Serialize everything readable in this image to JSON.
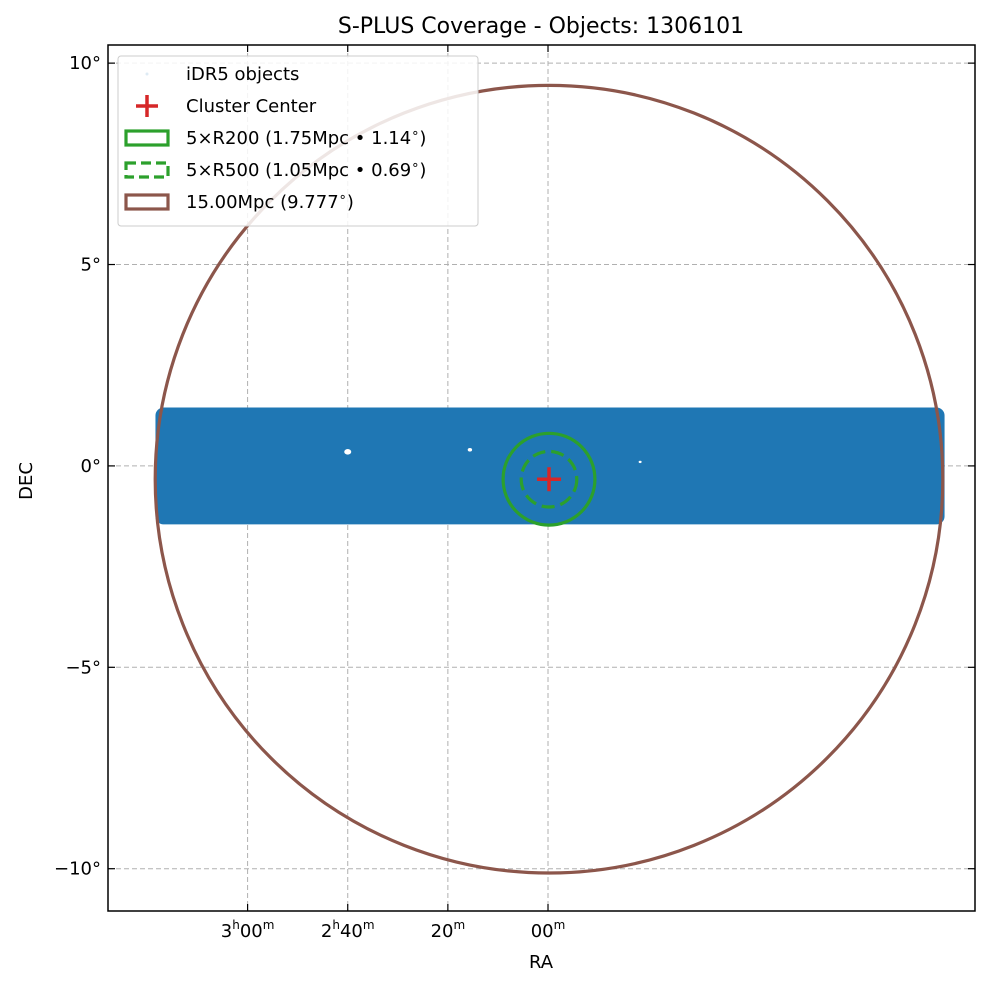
{
  "chart_data": {
    "type": "scatter",
    "title": "S-PLUS Coverage - Objects: 1306101",
    "xlabel": "RA",
    "ylabel": "DEC",
    "xlim_deg": [
      51.97,
      8.68
    ],
    "ylim_deg": [
      -11.05,
      10.45
    ],
    "grid": true,
    "legend_position": "top-left",
    "x_ticks": [
      {
        "value": 45.0,
        "h": "3",
        "m": "00",
        "show_h": true
      },
      {
        "value": 40.0,
        "h": "2",
        "m": "40",
        "show_h": true
      },
      {
        "value": 35.0,
        "h": "",
        "m": "20",
        "show_h": false
      },
      {
        "value": 30.0,
        "h": "",
        "m": "00",
        "show_h": false
      }
    ],
    "y_ticks": [
      {
        "value": 10,
        "label": "10°"
      },
      {
        "value": 5,
        "label": "5°"
      },
      {
        "value": 0,
        "label": "0°"
      },
      {
        "value": -5,
        "label": "−5°"
      },
      {
        "value": -10,
        "label": "−10°"
      }
    ],
    "coverage_stripe": {
      "name": "iDR5 objects",
      "ra_min": 10.2,
      "ra_max": 49.6,
      "dec_min": -1.45,
      "dec_max": 1.45,
      "color": "#1f77b4"
    },
    "cluster_center": {
      "ra": 29.95,
      "dec": -0.33,
      "color": "#d62728"
    },
    "circles": [
      {
        "name": "5×R200 (1.75Mpc • 1.14$^\\circ$)",
        "radius_deg": 1.14,
        "color": "#2ca02c",
        "style": "solid"
      },
      {
        "name": "5×R500 (1.05Mpc • 0.69$^\\circ$)",
        "radius_deg": 0.69,
        "color": "#2ca02c",
        "style": "dashed"
      },
      {
        "name": "15.00Mpc (9.777$^\\circ$)",
        "radius_deg": 9.777,
        "color": "#8c564b",
        "style": "solid"
      }
    ],
    "legend": [
      {
        "label": "iDR5 objects",
        "marker": "point",
        "color": "#1f77b4"
      },
      {
        "label": "Cluster Center",
        "marker": "plus",
        "color": "#d62728"
      },
      {
        "label": "5×R200 (1.75Mpc • 1.14",
        "suffix": ")",
        "degree": true,
        "marker": "rect-solid",
        "color": "#2ca02c"
      },
      {
        "label": "5×R500 (1.05Mpc • 0.69",
        "suffix": ")",
        "degree": true,
        "marker": "rect-dashed",
        "color": "#2ca02c"
      },
      {
        "label": "15.00Mpc (9.777",
        "suffix": ")",
        "degree": true,
        "marker": "rect-solid",
        "color": "#8c564b"
      }
    ]
  }
}
